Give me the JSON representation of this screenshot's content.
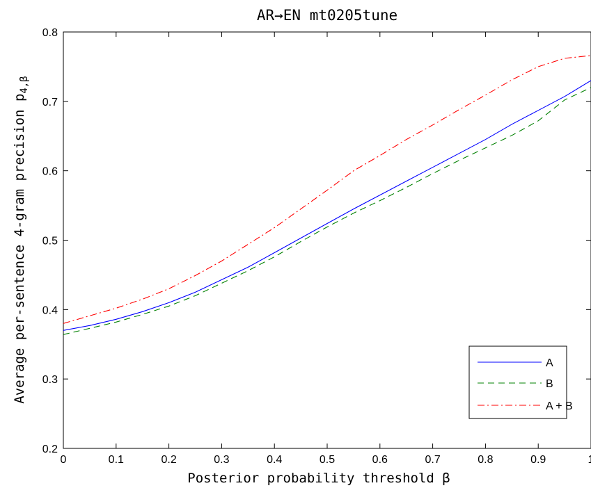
{
  "chart_data": {
    "type": "line",
    "title": "AR→EN mt0205tune",
    "xlabel": "Posterior probability threshold β",
    "ylabel": "Average per-sentence 4-gram precision p",
    "ylabel_subscript": "4,β",
    "xlim": [
      0,
      1
    ],
    "ylim": [
      0.2,
      0.8
    ],
    "xticks": [
      0,
      0.1,
      0.2,
      0.3,
      0.4,
      0.5,
      0.6,
      0.7,
      0.8,
      0.9,
      1
    ],
    "xtick_labels": [
      "0",
      "0.1",
      "0.2",
      "0.3",
      "0.4",
      "0.5",
      "0.6",
      "0.7",
      "0.8",
      "0.9",
      "1"
    ],
    "yticks": [
      0.2,
      0.3,
      0.4,
      0.5,
      0.6,
      0.7,
      0.8
    ],
    "ytick_labels": [
      "0.2",
      "0.3",
      "0.4",
      "0.5",
      "0.6",
      "0.7",
      "0.8"
    ],
    "grid": false,
    "legend_position": "bottom-right",
    "x": [
      0,
      0.05,
      0.1,
      0.15,
      0.2,
      0.25,
      0.3,
      0.35,
      0.4,
      0.45,
      0.5,
      0.55,
      0.6,
      0.65,
      0.7,
      0.75,
      0.8,
      0.85,
      0.9,
      0.95,
      1.0
    ],
    "series": [
      {
        "name": "A",
        "color": "#0000ff",
        "dash": "solid",
        "values": [
          0.37,
          0.377,
          0.386,
          0.397,
          0.41,
          0.425,
          0.443,
          0.461,
          0.482,
          0.503,
          0.524,
          0.545,
          0.565,
          0.585,
          0.605,
          0.625,
          0.645,
          0.667,
          0.687,
          0.707,
          0.73
        ]
      },
      {
        "name": "B",
        "color": "#008000",
        "dash": "dashed",
        "values": [
          0.364,
          0.373,
          0.382,
          0.393,
          0.405,
          0.42,
          0.438,
          0.456,
          0.476,
          0.498,
          0.519,
          0.539,
          0.557,
          0.576,
          0.596,
          0.615,
          0.633,
          0.651,
          0.672,
          0.702,
          0.72
        ]
      },
      {
        "name": "A + B",
        "color": "#ff0000",
        "dash": "dashdot",
        "values": [
          0.38,
          0.391,
          0.402,
          0.415,
          0.43,
          0.449,
          0.47,
          0.494,
          0.518,
          0.545,
          0.572,
          0.6,
          0.622,
          0.645,
          0.666,
          0.688,
          0.709,
          0.731,
          0.75,
          0.762,
          0.766
        ]
      }
    ]
  }
}
